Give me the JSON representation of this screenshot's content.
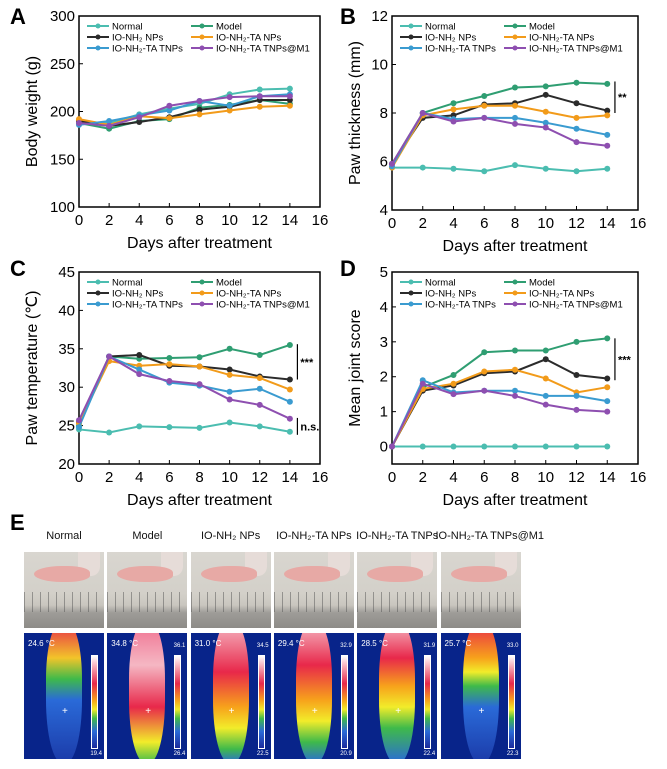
{
  "panels": {
    "a": "A",
    "b": "B",
    "c": "C",
    "d": "D",
    "e": "E"
  },
  "series_colors": {
    "Normal": "#4bbdb0",
    "Model": "#2f9e72",
    "IO-NH₂ NPs": "#2b2b2b",
    "IO-NH₂-TA NPs": "#f29b1a",
    "IO-NH₂-TA TNPs": "#3a9bd0",
    "IO-NH₂-TA TNPs@M1": "#8e4fb0"
  },
  "chart_data": [
    {
      "type": "line",
      "panel": "A",
      "xlabel": "Days after treatment",
      "ylabel": "Body weight (g)",
      "xlim": [
        0,
        16
      ],
      "ylim": [
        100,
        300
      ],
      "xticks": [
        "0",
        "2",
        "4",
        "6",
        "8",
        "10",
        "12",
        "14",
        "16"
      ],
      "yticks": [
        "100",
        "150",
        "200",
        "250",
        "300"
      ],
      "x": [
        0,
        2,
        4,
        6,
        8,
        10,
        12,
        14
      ],
      "legend": "top",
      "annotations": [],
      "series": [
        {
          "name": "Normal",
          "values": [
            187,
            188,
            197,
            203,
            208,
            218,
            223,
            224
          ]
        },
        {
          "name": "Model",
          "values": [
            188,
            182,
            190,
            192,
            204,
            207,
            212,
            208
          ]
        },
        {
          "name": "IO-NH₂ NPs",
          "values": [
            190,
            185,
            189,
            194,
            202,
            205,
            212,
            212
          ]
        },
        {
          "name": "IO-NH₂-TA NPs",
          "values": [
            192,
            186,
            195,
            193,
            197,
            201,
            205,
            206
          ]
        },
        {
          "name": "IO-NH₂-TA TNPs",
          "values": [
            186,
            190,
            196,
            201,
            211,
            206,
            216,
            218
          ]
        },
        {
          "name": "IO-NH₂-TA TNPs@M1",
          "values": [
            188,
            185,
            194,
            206,
            211,
            215,
            216,
            216
          ]
        }
      ]
    },
    {
      "type": "line",
      "panel": "B",
      "xlabel": "Days after treatment",
      "ylabel": "Paw thickness (mm)",
      "xlim": [
        0,
        16
      ],
      "ylim": [
        4,
        12
      ],
      "xticks": [
        "0",
        "2",
        "4",
        "6",
        "8",
        "10",
        "12",
        "14",
        "16"
      ],
      "yticks": [
        "4",
        "6",
        "8",
        "10",
        "12"
      ],
      "x": [
        0,
        2,
        4,
        6,
        8,
        10,
        12,
        14
      ],
      "legend": "top",
      "annotations": [
        {
          "text": "**",
          "range": [
            8.0,
            9.3
          ]
        }
      ],
      "series": [
        {
          "name": "Normal",
          "values": [
            5.75,
            5.75,
            5.7,
            5.6,
            5.85,
            5.7,
            5.6,
            5.7
          ]
        },
        {
          "name": "Model",
          "values": [
            5.9,
            8.0,
            8.4,
            8.7,
            9.05,
            9.1,
            9.25,
            9.2
          ]
        },
        {
          "name": "IO-NH₂ NPs",
          "values": [
            5.9,
            7.8,
            7.9,
            8.35,
            8.4,
            8.75,
            8.4,
            8.1
          ]
        },
        {
          "name": "IO-NH₂-TA NPs",
          "values": [
            5.75,
            7.9,
            8.15,
            8.3,
            8.3,
            8.05,
            7.8,
            7.9
          ]
        },
        {
          "name": "IO-NH₂-TA TNPs",
          "values": [
            5.8,
            8.0,
            7.75,
            7.8,
            7.8,
            7.6,
            7.35,
            7.1
          ]
        },
        {
          "name": "IO-NH₂-TA TNPs@M1",
          "values": [
            5.9,
            8.0,
            7.65,
            7.8,
            7.55,
            7.4,
            6.8,
            6.65
          ]
        }
      ]
    },
    {
      "type": "line",
      "panel": "C",
      "xlabel": "Days after treatment",
      "ylabel": "Paw temperature (℃)",
      "xlim": [
        0,
        16
      ],
      "ylim": [
        20,
        45
      ],
      "xticks": [
        "0",
        "2",
        "4",
        "6",
        "8",
        "10",
        "12",
        "14",
        "16"
      ],
      "yticks": [
        "20",
        "25",
        "30",
        "35",
        "40",
        "45"
      ],
      "x": [
        0,
        2,
        4,
        6,
        8,
        10,
        12,
        14
      ],
      "legend": "top",
      "annotations": [
        {
          "text": "***",
          "range": [
            31,
            35.6
          ]
        },
        {
          "text": "n.s.",
          "range": [
            23.8,
            26
          ]
        }
      ],
      "series": [
        {
          "name": "Normal",
          "values": [
            24.5,
            24.1,
            24.9,
            24.8,
            24.7,
            25.4,
            24.9,
            24.2
          ]
        },
        {
          "name": "Model",
          "values": [
            25.0,
            34.0,
            33.7,
            33.8,
            33.9,
            35.0,
            34.2,
            35.5
          ]
        },
        {
          "name": "IO-NH₂ NPs",
          "values": [
            25.4,
            34.0,
            34.2,
            32.8,
            32.7,
            32.3,
            31.4,
            31.0
          ]
        },
        {
          "name": "IO-NH₂-TA NPs",
          "values": [
            25.3,
            33.4,
            32.8,
            33.0,
            32.7,
            31.6,
            31.2,
            29.7
          ]
        },
        {
          "name": "IO-NH₂-TA TNPs",
          "values": [
            24.8,
            34.0,
            32.3,
            30.6,
            30.2,
            29.4,
            29.8,
            28.1
          ]
        },
        {
          "name": "IO-NH₂-TA TNPs@M1",
          "values": [
            25.7,
            34.0,
            31.7,
            30.8,
            30.4,
            28.4,
            27.7,
            25.9
          ]
        }
      ]
    },
    {
      "type": "line",
      "panel": "D",
      "xlabel": "Days after treatment",
      "ylabel": "Mean joint score",
      "xlim": [
        0,
        16
      ],
      "ylim": [
        -0.5,
        5
      ],
      "xticks": [
        "0",
        "2",
        "4",
        "6",
        "8",
        "10",
        "12",
        "14",
        "16"
      ],
      "yticks": [
        "0",
        "1",
        "2",
        "3",
        "4",
        "5"
      ],
      "x": [
        0,
        2,
        4,
        6,
        8,
        10,
        12,
        14
      ],
      "legend": "top",
      "annotations": [
        {
          "text": "***",
          "range": [
            1.9,
            3.1
          ]
        }
      ],
      "series": [
        {
          "name": "Normal",
          "values": [
            0,
            0,
            0,
            0,
            0,
            0,
            0,
            0
          ]
        },
        {
          "name": "Model",
          "values": [
            0,
            1.7,
            2.05,
            2.7,
            2.75,
            2.75,
            3.0,
            3.1
          ]
        },
        {
          "name": "IO-NH₂ NPs",
          "values": [
            0,
            1.6,
            1.75,
            2.1,
            2.15,
            2.5,
            2.05,
            1.95
          ]
        },
        {
          "name": "IO-NH₂-TA NPs",
          "values": [
            0,
            1.65,
            1.8,
            2.15,
            2.2,
            1.95,
            1.55,
            1.7
          ]
        },
        {
          "name": "IO-NH₂-TA TNPs",
          "values": [
            0,
            1.9,
            1.55,
            1.6,
            1.6,
            1.45,
            1.45,
            1.3
          ]
        },
        {
          "name": "IO-NH₂-TA TNPs@M1",
          "values": [
            0,
            1.8,
            1.5,
            1.6,
            1.45,
            1.2,
            1.05,
            1.0
          ]
        }
      ]
    }
  ],
  "panel_e": {
    "groups": [
      {
        "label": "Normal",
        "reading": "24.6 °C",
        "max": "",
        "min": "19.4"
      },
      {
        "label": "Model",
        "reading": "34.8 °C",
        "max": "36.1",
        "min": "26.4"
      },
      {
        "label": "IO-NH₂ NPs",
        "reading": "31.0 °C",
        "max": "34.5",
        "min": "22.5"
      },
      {
        "label": "IO-NH₂-TA NPs",
        "reading": "29.4 °C",
        "max": "32.9",
        "min": "20.9"
      },
      {
        "label": "IO-NH₂-TA TNPs",
        "reading": "28.5 °C",
        "max": "31.9",
        "min": "22.4"
      },
      {
        "label": "IO-NH₂-TA TNPs@M1",
        "reading": "25.7 °C",
        "max": "33.0",
        "min": "22.3"
      }
    ]
  }
}
